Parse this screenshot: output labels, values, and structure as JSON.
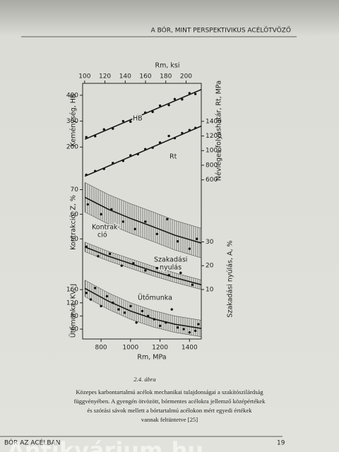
{
  "header": {
    "title": "A BÓR, MINT PERSPEKTIVIKUS ACÉLÖTVÖZŐ"
  },
  "chart_data": [
    {
      "type": "line",
      "xlim": [
        675,
        1480
      ],
      "x_top": {
        "label": "Rm, ksi",
        "xlim": [
          98,
          215
        ],
        "xticks": [
          100,
          120,
          140,
          160,
          180,
          200
        ]
      },
      "ylabel": "Keménység, HB",
      "ylim": [
        45,
        446
      ],
      "yticks": [
        200,
        300,
        400
      ],
      "y2label": "Névleges folyáshatár, Rt, MPa",
      "y2lim": [
        500,
        1920
      ],
      "y2ticks": [
        600,
        800,
        1000,
        1200,
        1400
      ],
      "series": [
        {
          "annotation": [
            "HB"
          ],
          "color": "#1a1a1a",
          "x": [
            690,
            1480
          ],
          "values": [
            230,
            422
          ],
          "points_x": [
            700,
            760,
            820,
            880,
            950,
            1000,
            1050,
            1100,
            1150,
            1200,
            1260,
            1300,
            1350,
            1400,
            1440
          ],
          "points": [
            238,
            242,
            268,
            271,
            300,
            298,
            322,
            333,
            336,
            360,
            362,
            385,
            384,
            408,
            405
          ]
        },
        {
          "annotation": [
            "Rt"
          ],
          "axis": "y2",
          "color": "#1a1a1a",
          "x": [
            690,
            1480
          ],
          "values": [
            649,
            1336
          ],
          "points_x": [
            700,
            760,
            820,
            880,
            950,
            1000,
            1050,
            1100,
            1150,
            1200,
            1260,
            1300,
            1350,
            1400,
            1440
          ],
          "points": [
            670,
            720,
            750,
            830,
            860,
            935,
            950,
            1020,
            1040,
            1110,
            1200,
            1170,
            1240,
            1280,
            1310
          ]
        }
      ]
    },
    {
      "type": "line",
      "xlim": [
        675,
        1480
      ],
      "ylabel": "Kontrakció, Z, %",
      "ylim": [
        28,
        71
      ],
      "yticks": [
        50,
        60,
        70
      ],
      "y2label": "Szakadási nyúlás, A, %",
      "y2lim": [
        8.5,
        53
      ],
      "y2ticks": [
        10,
        20,
        30
      ],
      "series": [
        {
          "annotation": [
            "Kontrak-",
            "ció"
          ],
          "color": "#1a1a1a",
          "spread": 6,
          "x": [
            690,
            850,
            1000,
            1150,
            1300,
            1480
          ],
          "values": [
            66.9,
            62,
            58.3,
            55,
            51.5,
            48.3
          ],
          "points_x": [
            710,
            800,
            870,
            950,
            1030,
            1100,
            1180,
            1250,
            1320,
            1400,
            1450
          ],
          "points": [
            64,
            60,
            62,
            57,
            54,
            57,
            52,
            58,
            49,
            46,
            50
          ]
        },
        {
          "annotation": [
            "Szakadási",
            "nyulás"
          ],
          "axis": "y2",
          "color": "#1a1a1a",
          "spread": 2,
          "x": [
            690,
            850,
            1000,
            1150,
            1300,
            1480
          ],
          "values": [
            27.9,
            24,
            20.9,
            17.8,
            15,
            12
          ],
          "points_x": [
            700,
            780,
            860,
            940,
            1020,
            1100,
            1180,
            1260,
            1340,
            1420
          ],
          "points": [
            28,
            24,
            25,
            20,
            21,
            18,
            19,
            16,
            17,
            12
          ]
        }
      ]
    },
    {
      "type": "line",
      "xlim": [
        675,
        1480
      ],
      "xlabel": "Rm, MPa",
      "xticks": [
        800,
        1000,
        1200,
        1400
      ],
      "ylabel": "Ütőmunka, KV, J",
      "ylim": [
        10,
        171
      ],
      "yticks": [
        40,
        80,
        120,
        160
      ],
      "series": [
        {
          "annotation": [
            "Ütőmunka"
          ],
          "color": "#1a1a1a",
          "spread": 25,
          "x": [
            690,
            850,
            1000,
            1150,
            1300,
            1480
          ],
          "values": [
            164,
            125,
            95,
            72,
            55,
            42
          ],
          "points_x": [
            700,
            730,
            760,
            800,
            840,
            880,
            920,
            960,
            1000,
            1040,
            1080,
            1120,
            1160,
            1200,
            1240,
            1280,
            1320,
            1360,
            1400,
            1440,
            1460
          ],
          "points": [
            150,
            130,
            165,
            110,
            140,
            120,
            100,
            90,
            110,
            60,
            95,
            80,
            70,
            50,
            60,
            100,
            45,
            40,
            30,
            35,
            55
          ]
        }
      ]
    }
  ],
  "figure": {
    "number": "2.4. ábra",
    "caption": [
      "Közepes karbontartalmú acélok mechanikai tulajdonságai a szakítószilárdság",
      "függvényében. A gyengén ötvözött, bórmentes acélokra jellemző középértékek",
      "és szórási sávok mellett a bórtartalmú acélokon mért egyedi értékek",
      "vannak feltüntetve [25]"
    ]
  },
  "footer": {
    "left": "BÓR AZ ACÉLBAN",
    "page": 19
  },
  "watermark": "Antikvárium.hu"
}
